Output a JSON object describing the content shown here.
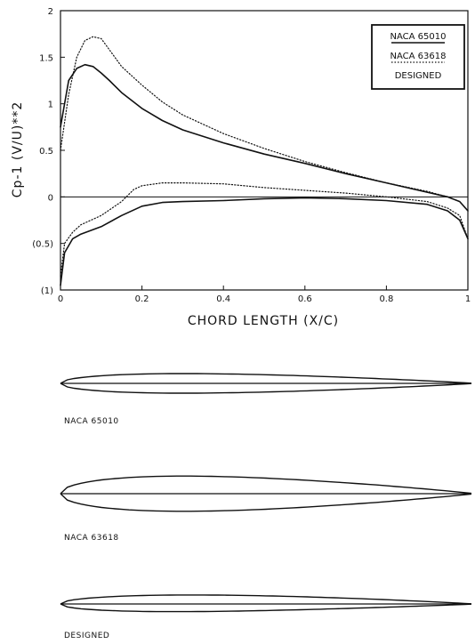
{
  "chart_data": {
    "type": "line",
    "xlabel": "CHORD LENGTH (X/C)",
    "ylabel": "Cp-1 (V/U)**2",
    "xlim": [
      0,
      1
    ],
    "ylim": [
      -1,
      2
    ],
    "x_ticks": [
      "0",
      "0.2",
      "0.4",
      "0.6",
      "0.8",
      "1"
    ],
    "x_tick_labels": [
      "0",
      "0.2",
      "0.4",
      "0.6",
      "0.8",
      "1"
    ],
    "y_ticks": [
      -1,
      -0.5,
      0,
      0.5,
      1,
      1.5,
      2
    ],
    "y_tick_labels": [
      "(1)",
      "(0.5)",
      "0",
      "0.5",
      "1",
      "1.5",
      "2"
    ],
    "grid": false,
    "legend": {
      "placement": "top-right",
      "entries": [
        "NACA 65010",
        "NACA 63618",
        "DESIGNED"
      ]
    },
    "series": [
      {
        "name": "NACA 65010",
        "style": "solid",
        "x": [
          0,
          0.02,
          0.04,
          0.06,
          0.08,
          0.1,
          0.12,
          0.15,
          0.2,
          0.25,
          0.3,
          0.4,
          0.5,
          0.6,
          0.7,
          0.8,
          0.9,
          0.95,
          0.98,
          1
        ],
        "values": [
          0.75,
          1.25,
          1.38,
          1.42,
          1.4,
          1.33,
          1.25,
          1.12,
          0.95,
          0.82,
          0.72,
          0.58,
          0.46,
          0.36,
          0.25,
          0.15,
          0.05,
          0.0,
          -0.05,
          -0.15
        ]
      },
      {
        "name": "NACA 65010",
        "style": "solid",
        "x": [
          0,
          0.01,
          0.03,
          0.05,
          0.1,
          0.15,
          0.2,
          0.25,
          0.3,
          0.4,
          0.5,
          0.6,
          0.7,
          0.8,
          0.9,
          0.95,
          0.98,
          1
        ],
        "values": [
          -0.95,
          -0.6,
          -0.45,
          -0.4,
          -0.32,
          -0.2,
          -0.1,
          -0.06,
          -0.05,
          -0.04,
          -0.02,
          -0.01,
          -0.02,
          -0.04,
          -0.08,
          -0.15,
          -0.25,
          -0.45
        ]
      },
      {
        "name": "NACA 63618",
        "style": "dotted",
        "x": [
          0,
          0.02,
          0.04,
          0.06,
          0.08,
          0.1,
          0.12,
          0.15,
          0.2,
          0.25,
          0.3,
          0.4,
          0.5,
          0.6,
          0.7,
          0.8,
          0.9,
          0.95,
          0.98,
          1
        ],
        "values": [
          0.5,
          1.1,
          1.5,
          1.68,
          1.72,
          1.7,
          1.58,
          1.4,
          1.2,
          1.02,
          0.88,
          0.68,
          0.52,
          0.38,
          0.26,
          0.15,
          0.06,
          0.0,
          -0.05,
          -0.15
        ]
      },
      {
        "name": "NACA 63618",
        "style": "dotted",
        "x": [
          0,
          0.01,
          0.03,
          0.05,
          0.1,
          0.15,
          0.18,
          0.2,
          0.25,
          0.3,
          0.4,
          0.5,
          0.6,
          0.7,
          0.8,
          0.9,
          0.95,
          0.98,
          1
        ],
        "values": [
          -0.85,
          -0.5,
          -0.38,
          -0.3,
          -0.2,
          -0.05,
          0.08,
          0.12,
          0.15,
          0.15,
          0.14,
          0.1,
          0.07,
          0.04,
          0.0,
          -0.05,
          -0.12,
          -0.2,
          -0.45
        ]
      }
    ],
    "annotations": [
      "NACA 65010",
      "NACA 63618",
      "DESIGNED"
    ]
  },
  "airfoils": [
    {
      "label": "NACA 65010",
      "max_thickness": 0.1,
      "camber": 0.0
    },
    {
      "label": "NACA 63618",
      "max_thickness": 0.18,
      "camber": 0.0
    },
    {
      "label": "DESIGNED",
      "max_thickness": 0.085,
      "camber": 0.004
    }
  ]
}
